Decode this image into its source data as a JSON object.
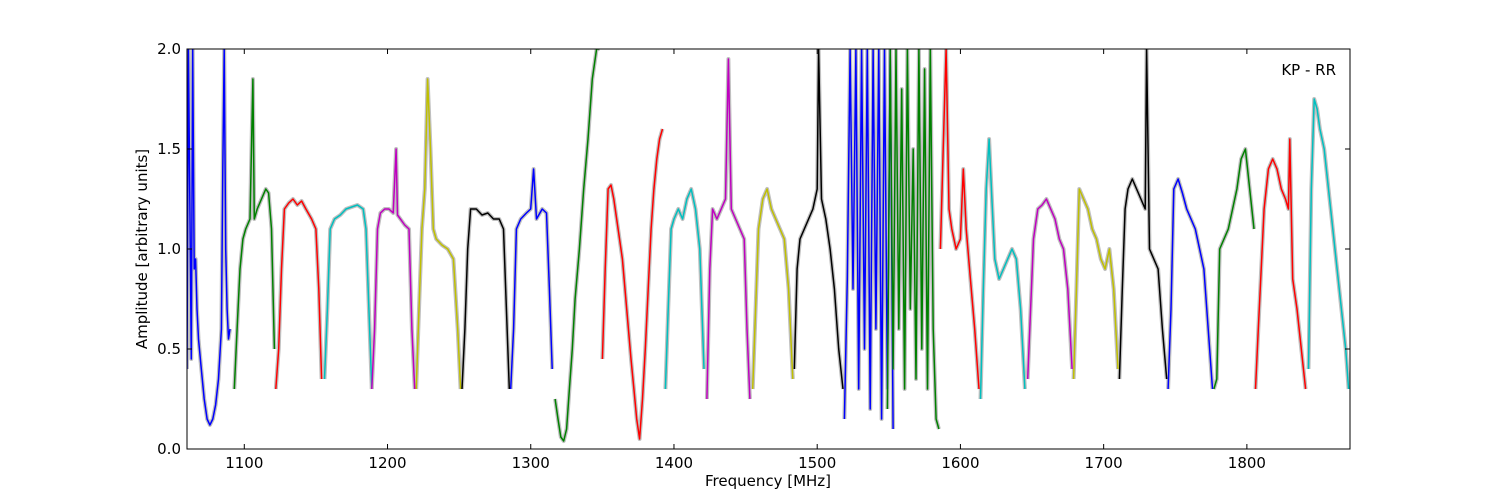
{
  "chart_data": {
    "type": "line",
    "title": "",
    "annotation": "KP - RR",
    "xlabel": "Frequency [MHz]",
    "ylabel": "Amplitude [arbitrary units]",
    "xlim": [
      1060,
      1872
    ],
    "ylim": [
      0.0,
      2.0
    ],
    "xticks": [
      1100,
      1200,
      1300,
      1400,
      1500,
      1600,
      1700,
      1800
    ],
    "xtick_labels": [
      "1100",
      "1200",
      "1300",
      "1400",
      "1500",
      "1600",
      "1700",
      "1800"
    ],
    "yticks": [
      0.0,
      0.5,
      1.0,
      1.5,
      2.0
    ],
    "ytick_labels": [
      "0.0",
      "0.5",
      "1.0",
      "1.5",
      "2.0"
    ],
    "grid": false,
    "background_color": "#c0c0c0",
    "series": [
      {
        "color": "#0000ff",
        "x": [
          1060,
          1061,
          1063,
          1064,
          1065,
          1066,
          1067,
          1068,
          1070,
          1072,
          1074,
          1076,
          1078,
          1080,
          1082,
          1084,
          1085,
          1086,
          1087,
          1088,
          1089,
          1090
        ],
        "y": [
          0.4,
          2.0,
          0.45,
          2.0,
          0.9,
          0.95,
          0.7,
          0.55,
          0.4,
          0.25,
          0.15,
          0.12,
          0.15,
          0.22,
          0.35,
          0.6,
          1.4,
          2.0,
          1.0,
          0.7,
          0.55,
          0.6
        ]
      },
      {
        "color": "#008000",
        "x": [
          1093,
          1095,
          1097,
          1099,
          1101,
          1104,
          1106,
          1107,
          1109,
          1112,
          1115,
          1117,
          1119,
          1121
        ],
        "y": [
          0.3,
          0.6,
          0.9,
          1.05,
          1.1,
          1.15,
          1.85,
          1.15,
          1.2,
          1.25,
          1.3,
          1.28,
          1.1,
          0.5
        ]
      },
      {
        "color": "#ff0000",
        "x": [
          1122,
          1124,
          1126,
          1128,
          1131,
          1134,
          1137,
          1140,
          1143,
          1147,
          1150,
          1152,
          1154
        ],
        "y": [
          0.3,
          0.5,
          0.9,
          1.2,
          1.23,
          1.25,
          1.22,
          1.24,
          1.2,
          1.15,
          1.1,
          0.8,
          0.35
        ]
      },
      {
        "color": "#00bfbf",
        "x": [
          1156,
          1158,
          1160,
          1163,
          1167,
          1171,
          1175,
          1179,
          1183,
          1185,
          1187,
          1189
        ],
        "y": [
          0.35,
          0.7,
          1.1,
          1.15,
          1.17,
          1.2,
          1.21,
          1.22,
          1.2,
          1.1,
          0.7,
          0.3
        ]
      },
      {
        "color": "#bf00bf",
        "x": [
          1189,
          1191,
          1193,
          1195,
          1198,
          1201,
          1204,
          1206,
          1207,
          1209,
          1212,
          1215,
          1217,
          1219
        ],
        "y": [
          0.3,
          0.6,
          1.1,
          1.18,
          1.2,
          1.2,
          1.18,
          1.5,
          1.17,
          1.15,
          1.12,
          1.1,
          0.6,
          0.3
        ]
      },
      {
        "color": "#bfbf00",
        "x": [
          1220,
          1222,
          1224,
          1226,
          1228,
          1230,
          1232,
          1234,
          1238,
          1242,
          1246,
          1249,
          1251
        ],
        "y": [
          0.3,
          0.7,
          1.1,
          1.3,
          1.85,
          1.5,
          1.1,
          1.05,
          1.02,
          1.0,
          0.95,
          0.6,
          0.3
        ]
      },
      {
        "color": "#000000",
        "x": [
          1252,
          1254,
          1256,
          1258,
          1262,
          1266,
          1270,
          1274,
          1278,
          1281,
          1283,
          1285
        ],
        "y": [
          0.3,
          0.6,
          1.0,
          1.2,
          1.2,
          1.17,
          1.18,
          1.15,
          1.15,
          1.1,
          0.7,
          0.3
        ]
      },
      {
        "color": "#0000ff",
        "x": [
          1286,
          1288,
          1290,
          1293,
          1297,
          1300,
          1302,
          1304,
          1308,
          1311,
          1313,
          1315
        ],
        "y": [
          0.3,
          0.6,
          1.1,
          1.15,
          1.18,
          1.2,
          1.4,
          1.15,
          1.2,
          1.18,
          0.8,
          0.4
        ]
      },
      {
        "color": "#008000",
        "x": [
          1317,
          1319,
          1321,
          1323,
          1325,
          1327,
          1329,
          1331,
          1334,
          1337,
          1340,
          1343,
          1346,
          1348
        ],
        "y": [
          0.25,
          0.15,
          0.06,
          0.04,
          0.1,
          0.3,
          0.5,
          0.75,
          1.0,
          1.3,
          1.55,
          1.85,
          2.0,
          2.0
        ]
      },
      {
        "color": "#ff0000",
        "x": [
          1350,
          1352,
          1354,
          1356,
          1358,
          1361,
          1364,
          1367,
          1370,
          1372,
          1374,
          1376,
          1378,
          1380,
          1382,
          1384,
          1386,
          1388,
          1390,
          1392
        ],
        "y": [
          0.45,
          0.9,
          1.3,
          1.32,
          1.25,
          1.1,
          0.95,
          0.7,
          0.45,
          0.3,
          0.15,
          0.05,
          0.25,
          0.5,
          0.8,
          1.1,
          1.3,
          1.45,
          1.55,
          1.6
        ]
      },
      {
        "color": "#00bfbf",
        "x": [
          1394,
          1396,
          1398,
          1400,
          1403,
          1406,
          1409,
          1412,
          1415,
          1418,
          1421
        ],
        "y": [
          0.3,
          0.7,
          1.1,
          1.15,
          1.2,
          1.15,
          1.25,
          1.3,
          1.2,
          1.0,
          0.4
        ]
      },
      {
        "color": "#bf00bf",
        "x": [
          1423,
          1425,
          1427,
          1430,
          1433,
          1436,
          1438,
          1440,
          1443,
          1446,
          1449,
          1451,
          1453
        ],
        "y": [
          0.25,
          0.9,
          1.2,
          1.15,
          1.2,
          1.25,
          1.95,
          1.2,
          1.15,
          1.1,
          1.05,
          0.6,
          0.25
        ]
      },
      {
        "color": "#bfbf00",
        "x": [
          1455,
          1457,
          1459,
          1462,
          1465,
          1468,
          1471,
          1474,
          1477,
          1480,
          1483
        ],
        "y": [
          0.3,
          0.7,
          1.1,
          1.25,
          1.3,
          1.2,
          1.15,
          1.1,
          1.05,
          0.8,
          0.35
        ]
      },
      {
        "color": "#000000",
        "x": [
          1484,
          1486,
          1488,
          1491,
          1494,
          1497,
          1500,
          1501,
          1503,
          1506,
          1509,
          1512,
          1515,
          1518
        ],
        "y": [
          0.4,
          0.9,
          1.05,
          1.1,
          1.15,
          1.2,
          1.3,
          2.0,
          1.25,
          1.15,
          1.0,
          0.8,
          0.5,
          0.3
        ]
      },
      {
        "color": "#0000ff",
        "x": [
          1519,
          1521,
          1523,
          1525,
          1527,
          1529,
          1531,
          1533,
          1535,
          1537,
          1539,
          1541,
          1543,
          1545,
          1547,
          1549,
          1551,
          1553
        ],
        "y": [
          0.15,
          0.85,
          2.0,
          0.8,
          2.0,
          0.3,
          2.0,
          0.5,
          2.0,
          0.2,
          2.0,
          0.6,
          2.0,
          0.15,
          2.0,
          0.3,
          2.0,
          0.1
        ]
      },
      {
        "color": "#008000",
        "x": [
          1549,
          1551,
          1553,
          1555,
          1557,
          1559,
          1561,
          1563,
          1565,
          1567,
          1569,
          1571,
          1573,
          1575,
          1577,
          1579,
          1581,
          1583,
          1585
        ],
        "y": [
          0.2,
          2.0,
          0.4,
          2.0,
          0.6,
          1.8,
          0.3,
          2.0,
          0.7,
          1.5,
          0.35,
          2.0,
          0.5,
          1.9,
          0.3,
          2.0,
          0.6,
          0.15,
          0.1
        ]
      },
      {
        "color": "#ff0000",
        "x": [
          1586,
          1588,
          1590,
          1592,
          1594,
          1597,
          1600,
          1602,
          1604,
          1607,
          1610,
          1613
        ],
        "y": [
          1.0,
          1.5,
          2.0,
          1.2,
          1.1,
          1.0,
          1.05,
          1.4,
          1.1,
          0.85,
          0.6,
          0.3
        ]
      },
      {
        "color": "#00bfbf",
        "x": [
          1614,
          1616,
          1618,
          1620,
          1622,
          1624,
          1627,
          1630,
          1633,
          1636,
          1639,
          1642,
          1645
        ],
        "y": [
          0.25,
          0.8,
          1.3,
          1.55,
          1.25,
          0.95,
          0.85,
          0.9,
          0.95,
          1.0,
          0.95,
          0.7,
          0.3
        ]
      },
      {
        "color": "#bf00bf",
        "x": [
          1647,
          1649,
          1651,
          1654,
          1657,
          1660,
          1663,
          1666,
          1669,
          1672,
          1675,
          1678
        ],
        "y": [
          0.35,
          0.7,
          1.05,
          1.2,
          1.22,
          1.25,
          1.2,
          1.15,
          1.05,
          1.0,
          0.8,
          0.4
        ]
      },
      {
        "color": "#bfbf00",
        "x": [
          1679,
          1681,
          1683,
          1686,
          1689,
          1692,
          1695,
          1698,
          1701,
          1704,
          1707,
          1710
        ],
        "y": [
          0.35,
          0.8,
          1.3,
          1.25,
          1.2,
          1.1,
          1.05,
          0.95,
          0.9,
          1.0,
          0.8,
          0.4
        ]
      },
      {
        "color": "#000000",
        "x": [
          1711,
          1713,
          1715,
          1717,
          1720,
          1723,
          1726,
          1729,
          1730,
          1732,
          1735,
          1738,
          1741,
          1744
        ],
        "y": [
          0.35,
          0.8,
          1.2,
          1.3,
          1.35,
          1.3,
          1.25,
          1.2,
          2.0,
          1.0,
          0.95,
          0.9,
          0.6,
          0.35
        ]
      },
      {
        "color": "#0000ff",
        "x": [
          1745,
          1747,
          1749,
          1752,
          1755,
          1758,
          1761,
          1764,
          1767,
          1770,
          1773,
          1776
        ],
        "y": [
          0.3,
          0.7,
          1.3,
          1.35,
          1.28,
          1.2,
          1.15,
          1.1,
          1.0,
          0.9,
          0.6,
          0.3
        ]
      },
      {
        "color": "#008000",
        "x": [
          1777,
          1779,
          1781,
          1784,
          1787,
          1790,
          1793,
          1796,
          1799,
          1802,
          1805
        ],
        "y": [
          0.3,
          0.35,
          1.0,
          1.05,
          1.1,
          1.2,
          1.3,
          1.45,
          1.5,
          1.3,
          1.1
        ]
      },
      {
        "color": "#ff0000",
        "x": [
          1806,
          1808,
          1810,
          1812,
          1815,
          1818,
          1821,
          1824,
          1827,
          1829,
          1830,
          1832,
          1835,
          1838,
          1841
        ],
        "y": [
          0.3,
          0.6,
          0.9,
          1.2,
          1.4,
          1.45,
          1.4,
          1.3,
          1.25,
          1.2,
          1.55,
          0.85,
          0.7,
          0.5,
          0.3
        ]
      },
      {
        "color": "#00bfbf",
        "x": [
          1843,
          1845,
          1847,
          1849,
          1851,
          1854,
          1857,
          1860,
          1863,
          1866,
          1869,
          1871
        ],
        "y": [
          0.4,
          1.3,
          1.75,
          1.7,
          1.6,
          1.5,
          1.3,
          1.1,
          0.9,
          0.7,
          0.5,
          0.3
        ]
      }
    ]
  }
}
